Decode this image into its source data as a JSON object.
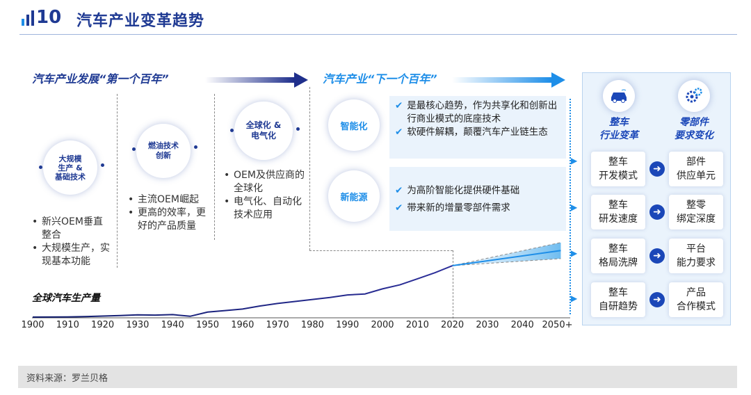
{
  "header": {
    "number": "10",
    "title": "汽车产业变革趋势"
  },
  "sections": {
    "first": "汽车产业发展“第一个百年”",
    "next": "汽车产业“下一个百年”"
  },
  "stages": [
    {
      "circle": [
        "大规模",
        "生产 &",
        "基础技术"
      ],
      "bullets": [
        "新兴OEM垂直整合",
        "大规模生产，实现基本功能"
      ]
    },
    {
      "circle": [
        "燃油技术",
        "创新"
      ],
      "bullets": [
        "主流OEM崛起",
        "更高的效率，更好的产品质量"
      ]
    },
    {
      "circle": [
        "全球化 &",
        "电气化"
      ],
      "bullets": [
        "OEM及供应商的全球化",
        "电气化、自动化技术应用"
      ]
    }
  ],
  "future": [
    {
      "circle": "智能化",
      "points": [
        "是最核心趋势，作为共享化和创新出行商业模式的底座技术",
        "软硬件解耦，颠覆汽车产业链生态"
      ]
    },
    {
      "circle": "新能源",
      "points": [
        "为高阶智能化提供硬件基础",
        "带来新的增量零部件需求"
      ]
    }
  ],
  "panel": {
    "left_header": [
      "整车",
      "行业变革"
    ],
    "right_header": [
      "零部件",
      "要求变化"
    ],
    "rows": [
      {
        "left": [
          "整车",
          "开发模式"
        ],
        "right": [
          "部件",
          "供应单元"
        ]
      },
      {
        "left": [
          "整车",
          "研发速度"
        ],
        "right": [
          "整零",
          "绑定深度"
        ]
      },
      {
        "left": [
          "整车",
          "格局洗牌"
        ],
        "right": [
          "平台",
          "能力要求"
        ]
      },
      {
        "left": [
          "整车",
          "自研趋势"
        ],
        "right": [
          "产品",
          "合作模式"
        ]
      }
    ]
  },
  "chart_data": {
    "type": "line",
    "ylabel": "全球汽车生产量",
    "x_ticks": [
      "1900",
      "1910",
      "1920",
      "1930",
      "1940",
      "1950",
      "1960",
      "1970",
      "1980",
      "1990",
      "2000",
      "2010",
      "2020",
      "2030",
      "2040",
      "2050+"
    ],
    "x": [
      1900,
      1910,
      1915,
      1920,
      1925,
      1930,
      1935,
      1940,
      1945,
      1950,
      1955,
      1960,
      1965,
      1970,
      1975,
      1980,
      1985,
      1990,
      1995,
      2000,
      2005,
      2010,
      2015,
      2020
    ],
    "values": [
      0.0,
      0.2,
      0.5,
      1.0,
      1.5,
      2.2,
      2.0,
      2.5,
      0.8,
      5.0,
      6.5,
      8.0,
      11.0,
      13.5,
      15.5,
      17.5,
      19.5,
      22.0,
      23.0,
      28.0,
      32.0,
      38.0,
      44.0,
      51.0
    ],
    "forecast": {
      "x": [
        2020,
        2050
      ],
      "center": [
        51.0,
        66.0
      ],
      "upper": [
        51.0,
        74.0
      ],
      "lower": [
        51.0,
        58.0
      ]
    },
    "ylim": [
      0,
      80
    ]
  },
  "source": "资料来源：罗兰贝格",
  "colors": {
    "navy": "#1f3a93",
    "blue": "#1e8ee8",
    "light_bg": "#eaf3fc"
  }
}
